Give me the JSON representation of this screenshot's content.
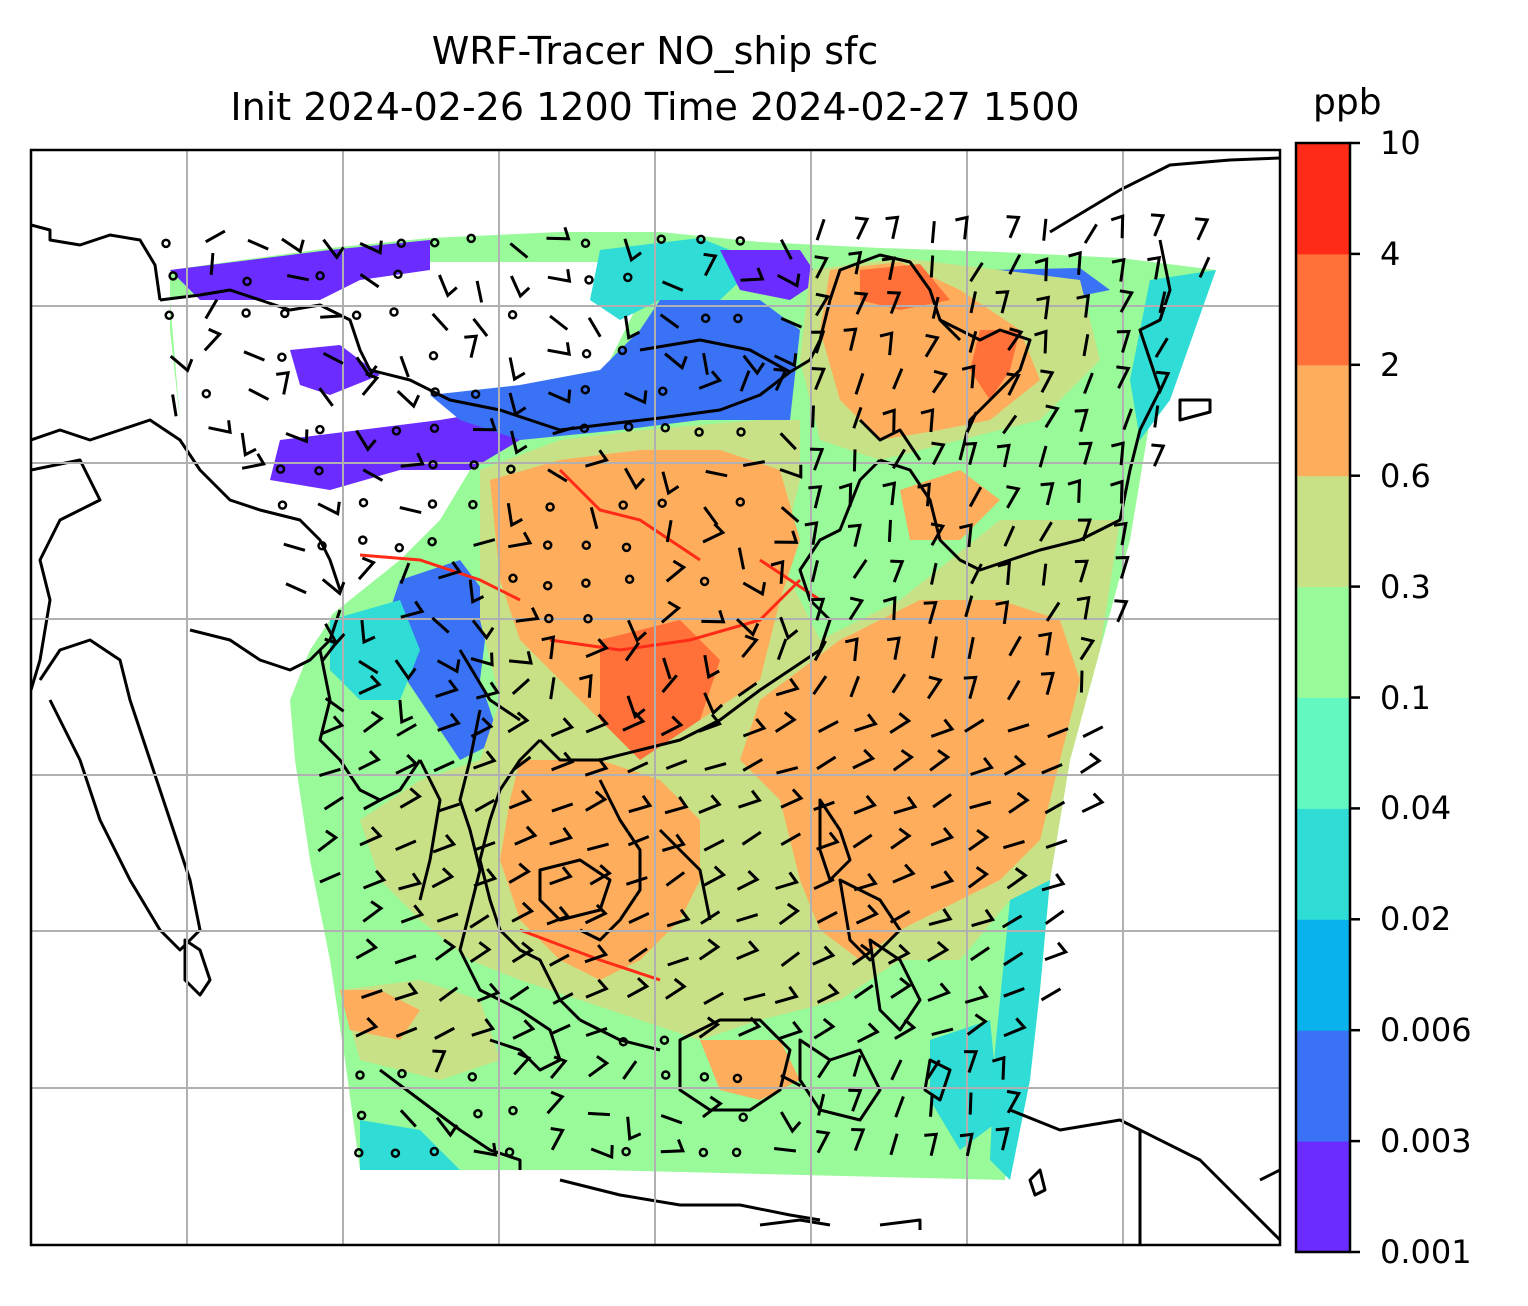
{
  "title": {
    "line1": "WRF-Tracer NO_ship sfc",
    "line2": "Init 2024-02-26 1200 Time 2024-02-27 1500"
  },
  "colorbar": {
    "unit": "ppb",
    "ticks": [
      "0.001",
      "0.003",
      "0.006",
      "0.02",
      "0.04",
      "0.1",
      "0.3",
      "0.6",
      "2",
      "4",
      "10"
    ],
    "colors": [
      "#6a2cff",
      "#3a72f5",
      "#08b2ec",
      "#2fdcd6",
      "#63f8bf",
      "#98fa98",
      "#c9e186",
      "#fdad5c",
      "#ff7139",
      "#ff2b16"
    ]
  },
  "map": {
    "projection": "lat-lon grid",
    "field": "NO_ship tracer concentration, surface",
    "overlay": "wind barbs",
    "gridlines": true
  }
}
